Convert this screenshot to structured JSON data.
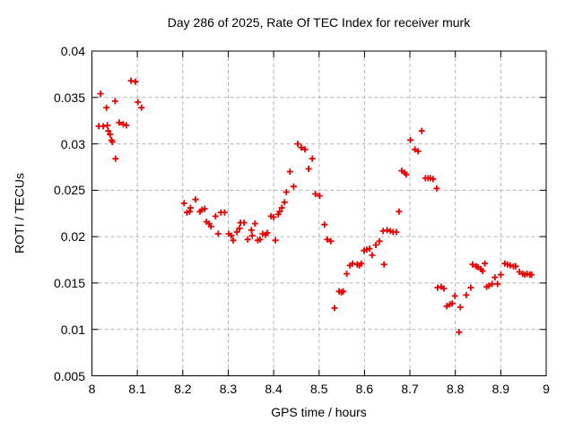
{
  "window": {
    "background": "#ffffff"
  },
  "chart_data": {
    "type": "scatter",
    "title": "Day 286 of 2025, Rate Of TEC Index for receiver murk",
    "xlabel": "GPS time / hours",
    "ylabel": "ROTI / TECUs",
    "xlim": [
      8,
      9
    ],
    "ylim": [
      0.005,
      0.04
    ],
    "grid": true,
    "legend_position": "none",
    "xticks": {
      "values": [
        8,
        8.1,
        8.2,
        8.3,
        8.4,
        8.5,
        8.6,
        8.7,
        8.8,
        8.9,
        9
      ],
      "labels": [
        "8",
        "8.1",
        "8.2",
        "8.3",
        "8.4",
        "8.5",
        "8.6",
        "8.7",
        "8.8",
        "8.9",
        "9"
      ]
    },
    "yticks": {
      "values": [
        0.005,
        0.01,
        0.015,
        0.02,
        0.025,
        0.03,
        0.035,
        0.04
      ],
      "labels": [
        "0.005",
        "0.01",
        "0.015",
        "0.02",
        "0.025",
        "0.03",
        "0.035",
        "0.04"
      ]
    },
    "colors": {
      "marker": "#e60000",
      "grid": "#b4b4b4",
      "axis": "#000000",
      "background": "#ffffff"
    },
    "series": [
      {
        "name": "ROTI",
        "marker": "plus",
        "points": [
          [
            8.015,
            0.0319
          ],
          [
            8.019,
            0.0354
          ],
          [
            8.025,
            0.0319
          ],
          [
            8.032,
            0.0339
          ],
          [
            8.034,
            0.032
          ],
          [
            8.036,
            0.0314
          ],
          [
            8.04,
            0.031
          ],
          [
            8.043,
            0.0304
          ],
          [
            8.045,
            0.0302
          ],
          [
            8.051,
            0.0346
          ],
          [
            8.052,
            0.0284
          ],
          [
            8.06,
            0.0323
          ],
          [
            8.069,
            0.0321
          ],
          [
            8.076,
            0.032
          ],
          [
            8.086,
            0.0368
          ],
          [
            8.096,
            0.0367
          ],
          [
            8.101,
            0.0345
          ],
          [
            8.109,
            0.0339
          ],
          [
            8.203,
            0.0236
          ],
          [
            8.209,
            0.0226
          ],
          [
            8.215,
            0.0227
          ],
          [
            8.217,
            0.0231
          ],
          [
            8.228,
            0.024
          ],
          [
            8.238,
            0.0227
          ],
          [
            8.242,
            0.0229
          ],
          [
            8.248,
            0.023
          ],
          [
            8.252,
            0.0216
          ],
          [
            8.258,
            0.0214
          ],
          [
            8.262,
            0.0211
          ],
          [
            8.272,
            0.0222
          ],
          [
            8.278,
            0.0203
          ],
          [
            8.284,
            0.0226
          ],
          [
            8.292,
            0.0226
          ],
          [
            8.301,
            0.0203
          ],
          [
            8.307,
            0.0201
          ],
          [
            8.311,
            0.0196
          ],
          [
            8.319,
            0.0205
          ],
          [
            8.325,
            0.0209
          ],
          [
            8.327,
            0.0215
          ],
          [
            8.335,
            0.0215
          ],
          [
            8.343,
            0.0197
          ],
          [
            8.351,
            0.0207
          ],
          [
            8.353,
            0.0201
          ],
          [
            8.359,
            0.0214
          ],
          [
            8.365,
            0.0196
          ],
          [
            8.37,
            0.0197
          ],
          [
            8.376,
            0.0203
          ],
          [
            8.382,
            0.0202
          ],
          [
            8.386,
            0.0204
          ],
          [
            8.394,
            0.0222
          ],
          [
            8.4,
            0.0221
          ],
          [
            8.404,
            0.0196
          ],
          [
            8.41,
            0.0224
          ],
          [
            8.413,
            0.0227
          ],
          [
            8.418,
            0.0231
          ],
          [
            8.424,
            0.0237
          ],
          [
            8.428,
            0.0248
          ],
          [
            8.436,
            0.027
          ],
          [
            8.444,
            0.0254
          ],
          [
            8.453,
            0.03
          ],
          [
            8.461,
            0.0296
          ],
          [
            8.469,
            0.0294
          ],
          [
            8.477,
            0.0273
          ],
          [
            8.485,
            0.0284
          ],
          [
            8.492,
            0.0246
          ],
          [
            8.501,
            0.0244
          ],
          [
            8.512,
            0.0213
          ],
          [
            8.518,
            0.0197
          ],
          [
            8.526,
            0.0195
          ],
          [
            8.534,
            0.0123
          ],
          [
            8.544,
            0.0141
          ],
          [
            8.549,
            0.014
          ],
          [
            8.553,
            0.0141
          ],
          [
            8.561,
            0.016
          ],
          [
            8.568,
            0.0169
          ],
          [
            8.574,
            0.0171
          ],
          [
            8.584,
            0.017
          ],
          [
            8.589,
            0.0169
          ],
          [
            8.593,
            0.0171
          ],
          [
            8.599,
            0.0185
          ],
          [
            8.605,
            0.0186
          ],
          [
            8.611,
            0.0187
          ],
          [
            8.617,
            0.018
          ],
          [
            8.625,
            0.0191
          ],
          [
            8.633,
            0.0195
          ],
          [
            8.643,
            0.017
          ],
          [
            8.641,
            0.0206
          ],
          [
            8.65,
            0.0207
          ],
          [
            8.657,
            0.0206
          ],
          [
            8.663,
            0.0205
          ],
          [
            8.67,
            0.0205
          ],
          [
            8.676,
            0.0227
          ],
          [
            8.682,
            0.0271
          ],
          [
            8.688,
            0.0269
          ],
          [
            8.692,
            0.0267
          ],
          [
            8.701,
            0.0304
          ],
          [
            8.711,
            0.0294
          ],
          [
            8.718,
            0.0292
          ],
          [
            8.726,
            0.0314
          ],
          [
            8.734,
            0.0263
          ],
          [
            8.74,
            0.0263
          ],
          [
            8.745,
            0.0263
          ],
          [
            8.751,
            0.0262
          ],
          [
            8.759,
            0.0252
          ],
          [
            8.761,
            0.0145
          ],
          [
            8.769,
            0.0146
          ],
          [
            8.775,
            0.0144
          ],
          [
            8.781,
            0.0125
          ],
          [
            8.788,
            0.0127
          ],
          [
            8.793,
            0.0128
          ],
          [
            8.799,
            0.0136
          ],
          [
            8.808,
            0.0097
          ],
          [
            8.811,
            0.0124
          ],
          [
            8.824,
            0.0137
          ],
          [
            8.834,
            0.0145
          ],
          [
            8.838,
            0.017
          ],
          [
            8.846,
            0.0168
          ],
          [
            8.85,
            0.0167
          ],
          [
            8.856,
            0.0165
          ],
          [
            8.86,
            0.0163
          ],
          [
            8.865,
            0.0171
          ],
          [
            8.869,
            0.0146
          ],
          [
            8.874,
            0.0147
          ],
          [
            8.881,
            0.0149
          ],
          [
            8.887,
            0.0156
          ],
          [
            8.893,
            0.0149
          ],
          [
            8.9,
            0.0159
          ],
          [
            8.909,
            0.0171
          ],
          [
            8.915,
            0.017
          ],
          [
            8.921,
            0.0169
          ],
          [
            8.928,
            0.0168
          ],
          [
            8.933,
            0.0168
          ],
          [
            8.941,
            0.0162
          ],
          [
            8.948,
            0.016
          ],
          [
            8.953,
            0.0159
          ],
          [
            8.958,
            0.016
          ],
          [
            8.964,
            0.0159
          ],
          [
            8.968,
            0.0159
          ]
        ]
      }
    ]
  }
}
